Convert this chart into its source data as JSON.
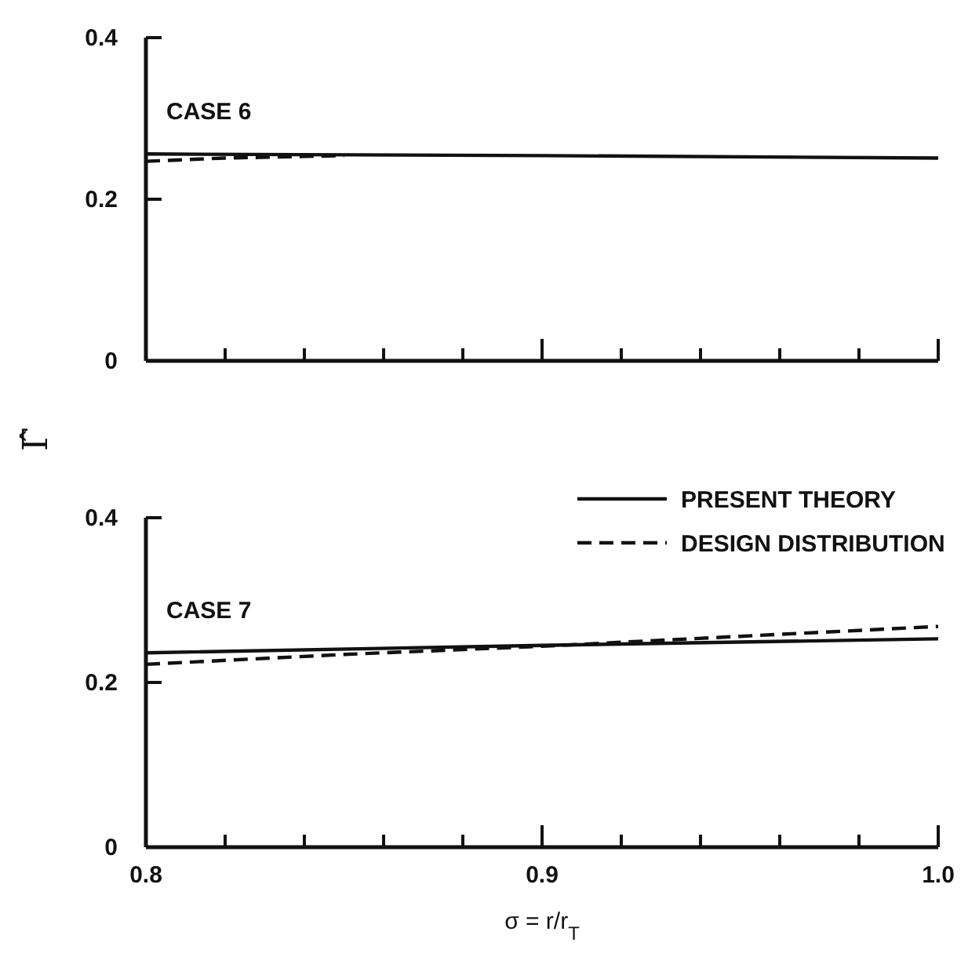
{
  "chart_data": [
    {
      "type": "line",
      "ylabel": "Γ̂",
      "annotations": [
        "CASE 6"
      ],
      "xlim": [
        0.8,
        1.0
      ],
      "ylim": [
        0,
        0.4
      ],
      "yticks": [
        0,
        0.2,
        0.4
      ],
      "xticks": [
        {
          "value": 0.8,
          "label": null
        },
        {
          "value": 0.82,
          "label": null
        },
        {
          "value": 0.84,
          "label": null
        },
        {
          "value": 0.86,
          "label": null
        },
        {
          "value": 0.88,
          "label": null
        },
        {
          "value": 0.9,
          "label": null
        },
        {
          "value": 0.92,
          "label": null
        },
        {
          "value": 0.94,
          "label": null
        },
        {
          "value": 0.96,
          "label": null
        },
        {
          "value": 0.98,
          "label": null
        },
        {
          "value": 1.0,
          "label": null
        }
      ],
      "tick_labels": "y",
      "grid": false,
      "marker": "none",
      "series": [
        {
          "color": "#111111",
          "line_style": "solid",
          "x": [
            0.8,
            0.9,
            1.0
          ],
          "values": [
            0.256,
            0.254,
            0.251
          ]
        },
        {
          "color": "#111111",
          "line_style": "dashed",
          "x": [
            0.8,
            0.82,
            0.85
          ],
          "values": [
            0.247,
            0.251,
            0.254
          ]
        }
      ]
    },
    {
      "type": "line",
      "xlabel": "σ = r/r$_{T}$",
      "annotations": [
        "CASE 7"
      ],
      "xlim": [
        0.8,
        1.0
      ],
      "ylim": [
        0,
        0.4
      ],
      "yticks": [
        0,
        0.2,
        0.4
      ],
      "xticks": [
        0.8,
        {
          "value": 0.82,
          "label": null
        },
        {
          "value": 0.84,
          "label": null
        },
        {
          "value": 0.86,
          "label": null
        },
        {
          "value": 0.88,
          "label": null
        },
        0.9,
        {
          "value": 0.92,
          "label": null
        },
        {
          "value": 0.94,
          "label": null
        },
        {
          "value": 0.96,
          "label": null
        },
        {
          "value": 0.98,
          "label": null
        },
        {
          "value": 1.0,
          "label": "1.0"
        }
      ],
      "grid": false,
      "marker": "none",
      "legend": "top right",
      "series": [
        {
          "name": "PRESENT THEORY",
          "color": "#111111",
          "line_style": "solid",
          "x": [
            0.8,
            0.9,
            1.0
          ],
          "values": [
            0.236,
            0.245,
            0.253
          ]
        },
        {
          "name": "DESIGN DISTRIBUTION",
          "color": "#111111",
          "line_style": "dashed",
          "x": [
            0.8,
            0.85,
            0.9,
            0.95,
            1.0
          ],
          "values": [
            0.222,
            0.234,
            0.244,
            0.256,
            0.268
          ]
        }
      ]
    }
  ]
}
